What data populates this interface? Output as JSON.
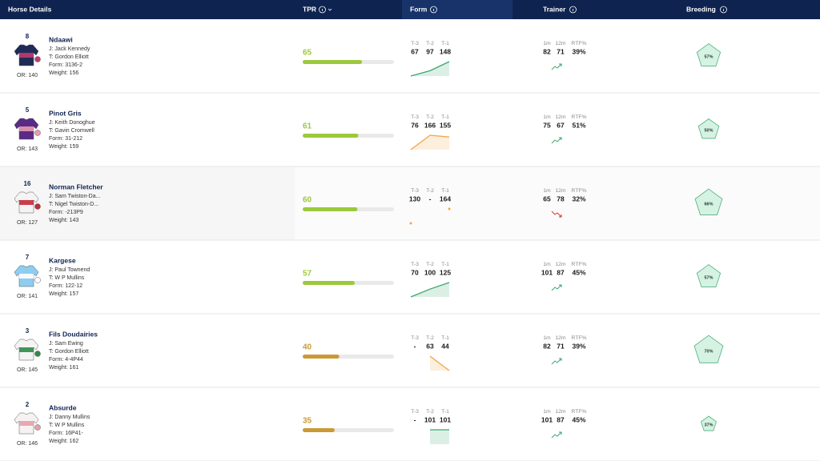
{
  "header": {
    "columns": [
      "Horse Details",
      "TPR",
      "Form",
      "Trainer",
      "Breeding"
    ],
    "form_labels": [
      "T-3",
      "T-2",
      "T-1"
    ],
    "trainer_labels": [
      "1m",
      "12m",
      "RTF%"
    ]
  },
  "rows": [
    {
      "number": 8,
      "name": "Ndaawi",
      "jockey": "J: Jack Kennedy",
      "trainer": "T: Gordon Elliott",
      "form": "Form: 3136-2",
      "weight": "Weight: 156",
      "rating": "OR: 140",
      "silk": {
        "body": "#1f2b57",
        "accent": "#c2386f"
      },
      "tpr": 65,
      "tpr_color": "#9cc93c",
      "form_values": [
        67,
        97,
        148
      ],
      "form_color": "#3aa76d",
      "trainer_stats": [
        82,
        71,
        "39%"
      ],
      "trainer_trend": "up",
      "breeding": {
        "value": 57,
        "label": "57%"
      }
    },
    {
      "number": 5,
      "name": "Pinot Gris",
      "jockey": "J: Keith Donoghue",
      "trainer": "T: Gavin Cromwell",
      "form": "Form: 31-212",
      "weight": "Weight: 159",
      "rating": "OR: 143",
      "silk": {
        "body": "#5b2a86",
        "accent": "#e79ab3"
      },
      "tpr": 61,
      "tpr_color": "#9cc93c",
      "form_values": [
        76,
        166,
        155
      ],
      "form_color": "#f2a545",
      "trainer_stats": [
        75,
        67,
        "51%"
      ],
      "trainer_trend": "up",
      "breeding": {
        "value": 50,
        "label": "50%"
      }
    },
    {
      "number": 16,
      "name": "Norman Fletcher",
      "jockey": "J: Sam Twiston-Da...",
      "trainer": "T: Nigel Twiston-D...",
      "form": "Form: -213P9",
      "weight": "Weight: 143",
      "rating": "OR: 127",
      "silk": {
        "body": "#f4f4f4",
        "accent": "#c8283a"
      },
      "tpr": 60,
      "tpr_color": "#9cc93c",
      "form_values": [
        130,
        "-",
        164
      ],
      "form_color": "#f2a545",
      "trainer_stats": [
        65,
        78,
        "32%"
      ],
      "trainer_trend": "down",
      "breeding": {
        "value": 66,
        "label": "66%"
      }
    },
    {
      "number": 7,
      "name": "Kargese",
      "jockey": "J: Paul Townend",
      "trainer": "T: W P Mullins",
      "form": "Form: 122-12",
      "weight": "Weight: 157",
      "rating": "OR: 141",
      "silk": {
        "body": "#8ecdf0",
        "accent": "#ffffff"
      },
      "tpr": 57,
      "tpr_color": "#9cc93c",
      "form_values": [
        70,
        100,
        125
      ],
      "form_color": "#3aa76d",
      "trainer_stats": [
        101,
        87,
        "45%"
      ],
      "trainer_trend": "up",
      "breeding": {
        "value": 57,
        "label": "57%"
      }
    },
    {
      "number": 3,
      "name": "Fils Doudairies",
      "jockey": "J: Sam Ewing",
      "trainer": "T: Gordon Elliott",
      "form": "Form: 4-4P44",
      "weight": "Weight: 161",
      "rating": "OR: 145",
      "silk": {
        "body": "#f4f4f4",
        "accent": "#2e8b4a"
      },
      "tpr": 40,
      "tpr_color": "#c99a35",
      "form_values": [
        "-",
        63,
        44
      ],
      "form_color": "#f2a545",
      "trainer_stats": [
        82,
        71,
        "39%"
      ],
      "trainer_trend": "up",
      "breeding": {
        "value": 70,
        "label": "70%"
      }
    },
    {
      "number": 2,
      "name": "Absurde",
      "jockey": "J: Danny Mullins",
      "trainer": "T: W P Mullins",
      "form": "Form: 16P41-",
      "weight": "Weight: 162",
      "rating": "OR: 146",
      "silk": {
        "body": "#f6f2f2",
        "accent": "#e7a0a8"
      },
      "tpr": 35,
      "tpr_color": "#c99a35",
      "form_values": [
        "-",
        101,
        101
      ],
      "form_color": "#3aa76d",
      "trainer_stats": [
        101,
        87,
        "45%"
      ],
      "trainer_trend": "up",
      "breeding": {
        "value": 37,
        "label": "37%"
      }
    }
  ]
}
